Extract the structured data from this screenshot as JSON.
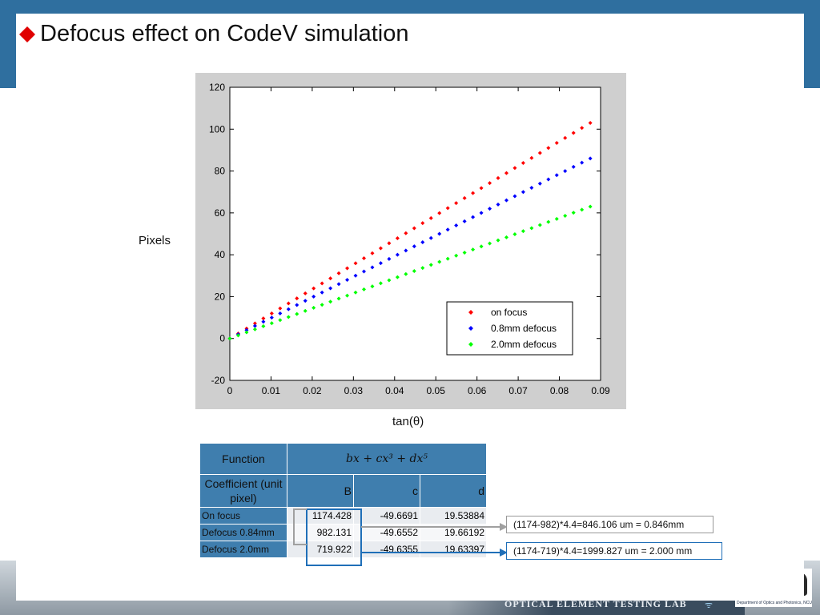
{
  "slide": {
    "title": "Defocus effect  on CodeV simulation",
    "footer_lab": "OPTICAL ELEMENT TESTING LAB",
    "footer_dept": "Department of Optics and Photonics, NCU",
    "colors": {
      "band": "#2f6f9f",
      "title_bullet": "#e00000",
      "table_header": "#3f7eae"
    }
  },
  "chart_data": {
    "type": "scatter",
    "xlabel": "tan(θ)",
    "ylabel": "Pixels",
    "xlim": [
      0,
      0.09
    ],
    "ylim": [
      -20,
      120
    ],
    "xticks": [
      "0",
      "0.01",
      "0.02",
      "0.03",
      "0.04",
      "0.05",
      "0.06",
      "0.07",
      "0.08",
      "0.09"
    ],
    "yticks": [
      "-20",
      "0",
      "20",
      "40",
      "60",
      "80",
      "100",
      "120"
    ],
    "grid": false,
    "legend_position": "bottom-right",
    "series": [
      {
        "name": "on focus",
        "color": "#ff0000",
        "x_start": 0,
        "x_end": 0.0875,
        "y_start": 0,
        "y_end": 103,
        "points": 44
      },
      {
        "name": "0.8mm defocus",
        "color": "#0000ff",
        "x_start": 0,
        "x_end": 0.0875,
        "y_start": 0,
        "y_end": 86,
        "points": 44
      },
      {
        "name": "2.0mm defocus",
        "color": "#00ff00",
        "x_start": 0,
        "x_end": 0.0875,
        "y_start": 0,
        "y_end": 63,
        "points": 44
      }
    ]
  },
  "table": {
    "function_label": "Function",
    "function_expr": "bx    + cx³ + dx⁵",
    "coef_label": "Coefficient (unit pixel)",
    "cols": [
      "B",
      "c",
      "d"
    ],
    "rows": [
      {
        "label": "On focus",
        "B": "1174.428",
        "c": "-49.6691",
        "d": "19.53884"
      },
      {
        "label": "Defocus 0.84mm",
        "B": "982.131",
        "c": "-49.6552",
        "d": "19.66192"
      },
      {
        "label": "Defocus 2.0mm",
        "B": "719.922",
        "c": "-49.6355",
        "d": "19.63397"
      }
    ]
  },
  "notes": {
    "gray": "(1174-982)*4.4=846.106 um = 0.846mm",
    "blue": "(1174-719)*4.4=1999.827 um = 2.000 mm"
  }
}
